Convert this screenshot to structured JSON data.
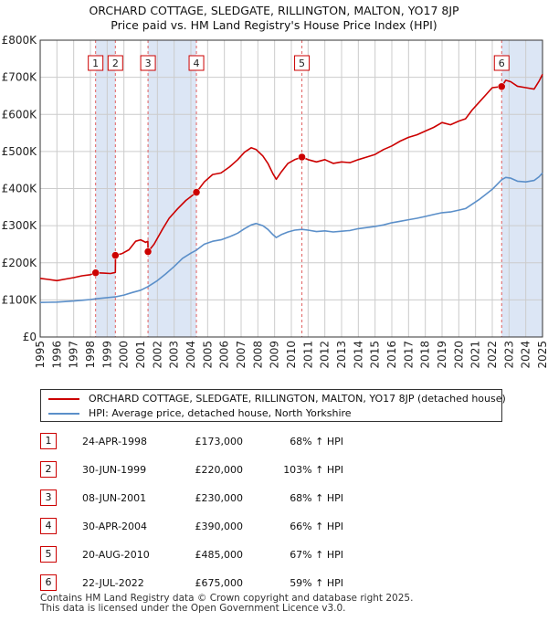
{
  "title": {
    "line1": "ORCHARD COTTAGE, SLEDGATE, RILLINGTON, MALTON, YO17 8JP",
    "line2": "Price paid vs. HM Land Registry's House Price Index (HPI)"
  },
  "colors": {
    "property": "#cc0000",
    "hpi": "#5b8fc9",
    "band": "#dce6f5",
    "grid": "#cccccc",
    "vline": "#e06060"
  },
  "chart_data": {
    "type": "line",
    "title": "Price paid vs. HM Land Registry's House Price Index (HPI)",
    "xlabel": "",
    "ylabel": "",
    "xlim": [
      1995,
      2025
    ],
    "ylim": [
      0,
      800000
    ],
    "y_ticks": [
      0,
      100000,
      200000,
      300000,
      400000,
      500000,
      600000,
      700000,
      800000
    ],
    "y_tick_labels": [
      "£0",
      "£100K",
      "£200K",
      "£300K",
      "£400K",
      "£500K",
      "£600K",
      "£700K",
      "£800K"
    ],
    "x_ticks": [
      1995,
      1996,
      1997,
      1998,
      1999,
      2000,
      2001,
      2002,
      2003,
      2004,
      2005,
      2006,
      2007,
      2008,
      2009,
      2010,
      2011,
      2012,
      2013,
      2014,
      2015,
      2016,
      2017,
      2018,
      2019,
      2020,
      2021,
      2022,
      2023,
      2024,
      2025
    ],
    "grid": true,
    "series": [
      {
        "name": "ORCHARD COTTAGE, SLEDGATE, RILLINGTON, MALTON, YO17 8JP (detached house)",
        "color": "#cc0000",
        "points": [
          [
            1995.0,
            158000
          ],
          [
            1995.5,
            155000
          ],
          [
            1996.0,
            152000
          ],
          [
            1996.5,
            156000
          ],
          [
            1997.0,
            160000
          ],
          [
            1997.5,
            165000
          ],
          [
            1998.0,
            168000
          ],
          [
            1998.31,
            173000
          ],
          [
            1998.8,
            172000
          ],
          [
            1999.2,
            171000
          ],
          [
            1999.49,
            174000
          ],
          [
            1999.5,
            220000
          ],
          [
            1999.9,
            225000
          ],
          [
            2000.3,
            235000
          ],
          [
            2000.7,
            258000
          ],
          [
            2001.0,
            262000
          ],
          [
            2001.3,
            255000
          ],
          [
            2001.43,
            258000
          ],
          [
            2001.44,
            230000
          ],
          [
            2001.8,
            250000
          ],
          [
            2002.3,
            290000
          ],
          [
            2002.7,
            320000
          ],
          [
            2003.2,
            345000
          ],
          [
            2003.7,
            368000
          ],
          [
            2004.33,
            390000
          ],
          [
            2004.8,
            418000
          ],
          [
            2005.3,
            438000
          ],
          [
            2005.8,
            442000
          ],
          [
            2006.3,
            458000
          ],
          [
            2006.8,
            478000
          ],
          [
            2007.2,
            498000
          ],
          [
            2007.6,
            510000
          ],
          [
            2007.9,
            505000
          ],
          [
            2008.3,
            488000
          ],
          [
            2008.6,
            468000
          ],
          [
            2008.9,
            440000
          ],
          [
            2009.1,
            425000
          ],
          [
            2009.4,
            445000
          ],
          [
            2009.8,
            468000
          ],
          [
            2010.2,
            478000
          ],
          [
            2010.63,
            485000
          ],
          [
            2011.0,
            478000
          ],
          [
            2011.5,
            472000
          ],
          [
            2012.0,
            478000
          ],
          [
            2012.5,
            468000
          ],
          [
            2013.0,
            472000
          ],
          [
            2013.5,
            470000
          ],
          [
            2014.0,
            478000
          ],
          [
            2014.5,
            485000
          ],
          [
            2015.0,
            492000
          ],
          [
            2015.5,
            505000
          ],
          [
            2016.0,
            515000
          ],
          [
            2016.5,
            528000
          ],
          [
            2017.0,
            538000
          ],
          [
            2017.5,
            545000
          ],
          [
            2018.0,
            555000
          ],
          [
            2018.5,
            565000
          ],
          [
            2019.0,
            578000
          ],
          [
            2019.5,
            572000
          ],
          [
            2020.0,
            582000
          ],
          [
            2020.4,
            588000
          ],
          [
            2020.8,
            612000
          ],
          [
            2021.2,
            632000
          ],
          [
            2021.6,
            652000
          ],
          [
            2022.0,
            672000
          ],
          [
            2022.56,
            675000
          ],
          [
            2022.8,
            692000
          ],
          [
            2023.1,
            688000
          ],
          [
            2023.5,
            676000
          ],
          [
            2024.0,
            672000
          ],
          [
            2024.5,
            668000
          ],
          [
            2024.8,
            690000
          ],
          [
            2025.0,
            708000
          ]
        ]
      },
      {
        "name": "HPI: Average price, detached house, North Yorkshire",
        "color": "#5b8fc9",
        "points": [
          [
            1995.0,
            93000
          ],
          [
            1995.5,
            93500
          ],
          [
            1996.0,
            94000
          ],
          [
            1996.5,
            95500
          ],
          [
            1997.0,
            97000
          ],
          [
            1997.5,
            99000
          ],
          [
            1998.0,
            101000
          ],
          [
            1998.31,
            103000
          ],
          [
            1999.0,
            106000
          ],
          [
            1999.49,
            108000
          ],
          [
            2000.0,
            113000
          ],
          [
            2000.5,
            120000
          ],
          [
            2001.0,
            126000
          ],
          [
            2001.44,
            136000
          ],
          [
            2002.0,
            152000
          ],
          [
            2002.5,
            170000
          ],
          [
            2003.0,
            190000
          ],
          [
            2003.5,
            212000
          ],
          [
            2004.0,
            226000
          ],
          [
            2004.33,
            234000
          ],
          [
            2004.8,
            250000
          ],
          [
            2005.3,
            258000
          ],
          [
            2005.8,
            262000
          ],
          [
            2006.3,
            270000
          ],
          [
            2006.8,
            280000
          ],
          [
            2007.2,
            292000
          ],
          [
            2007.6,
            302000
          ],
          [
            2007.9,
            306000
          ],
          [
            2008.3,
            300000
          ],
          [
            2008.6,
            290000
          ],
          [
            2008.9,
            276000
          ],
          [
            2009.1,
            268000
          ],
          [
            2009.4,
            276000
          ],
          [
            2009.8,
            283000
          ],
          [
            2010.2,
            288000
          ],
          [
            2010.63,
            290000
          ],
          [
            2011.0,
            288000
          ],
          [
            2011.5,
            284000
          ],
          [
            2012.0,
            286000
          ],
          [
            2012.5,
            283000
          ],
          [
            2013.0,
            285000
          ],
          [
            2013.5,
            287000
          ],
          [
            2014.0,
            292000
          ],
          [
            2014.5,
            295000
          ],
          [
            2015.0,
            298000
          ],
          [
            2015.5,
            302000
          ],
          [
            2016.0,
            308000
          ],
          [
            2016.5,
            312000
          ],
          [
            2017.0,
            316000
          ],
          [
            2017.5,
            320000
          ],
          [
            2018.0,
            325000
          ],
          [
            2018.5,
            330000
          ],
          [
            2019.0,
            335000
          ],
          [
            2019.5,
            337000
          ],
          [
            2020.0,
            342000
          ],
          [
            2020.4,
            346000
          ],
          [
            2020.8,
            358000
          ],
          [
            2021.2,
            370000
          ],
          [
            2021.6,
            384000
          ],
          [
            2022.0,
            398000
          ],
          [
            2022.56,
            424000
          ],
          [
            2022.8,
            430000
          ],
          [
            2023.1,
            428000
          ],
          [
            2023.5,
            420000
          ],
          [
            2024.0,
            418000
          ],
          [
            2024.5,
            422000
          ],
          [
            2024.8,
            432000
          ],
          [
            2025.0,
            442000
          ]
        ]
      }
    ],
    "transactions": [
      {
        "num": "1",
        "x": 1998.31,
        "price": 173000
      },
      {
        "num": "2",
        "x": 1999.49,
        "price": 220000
      },
      {
        "num": "3",
        "x": 2001.44,
        "price": 230000
      },
      {
        "num": "4",
        "x": 2004.33,
        "price": 390000
      },
      {
        "num": "5",
        "x": 2010.63,
        "price": 485000
      },
      {
        "num": "6",
        "x": 2022.56,
        "price": 675000
      }
    ],
    "shaded_bands": [
      [
        1998.31,
        1999.49
      ],
      [
        2001.44,
        2004.33
      ],
      [
        2022.56,
        2025.0
      ]
    ]
  },
  "legend": {
    "property": "ORCHARD COTTAGE, SLEDGATE, RILLINGTON, MALTON, YO17 8JP (detached house)",
    "hpi": "HPI: Average price, detached house, North Yorkshire"
  },
  "table": [
    {
      "num": "1",
      "date": "24-APR-1998",
      "price": "£173,000",
      "hpi": "68% ↑ HPI"
    },
    {
      "num": "2",
      "date": "30-JUN-1999",
      "price": "£220,000",
      "hpi": "103% ↑ HPI"
    },
    {
      "num": "3",
      "date": "08-JUN-2001",
      "price": "£230,000",
      "hpi": "68% ↑ HPI"
    },
    {
      "num": "4",
      "date": "30-APR-2004",
      "price": "£390,000",
      "hpi": "66% ↑ HPI"
    },
    {
      "num": "5",
      "date": "20-AUG-2010",
      "price": "£485,000",
      "hpi": "67% ↑ HPI"
    },
    {
      "num": "6",
      "date": "22-JUL-2022",
      "price": "£675,000",
      "hpi": "59% ↑ HPI"
    }
  ],
  "footer": {
    "line1": "Contains HM Land Registry data © Crown copyright and database right 2025.",
    "line2": "This data is licensed under the Open Government Licence v3.0."
  }
}
